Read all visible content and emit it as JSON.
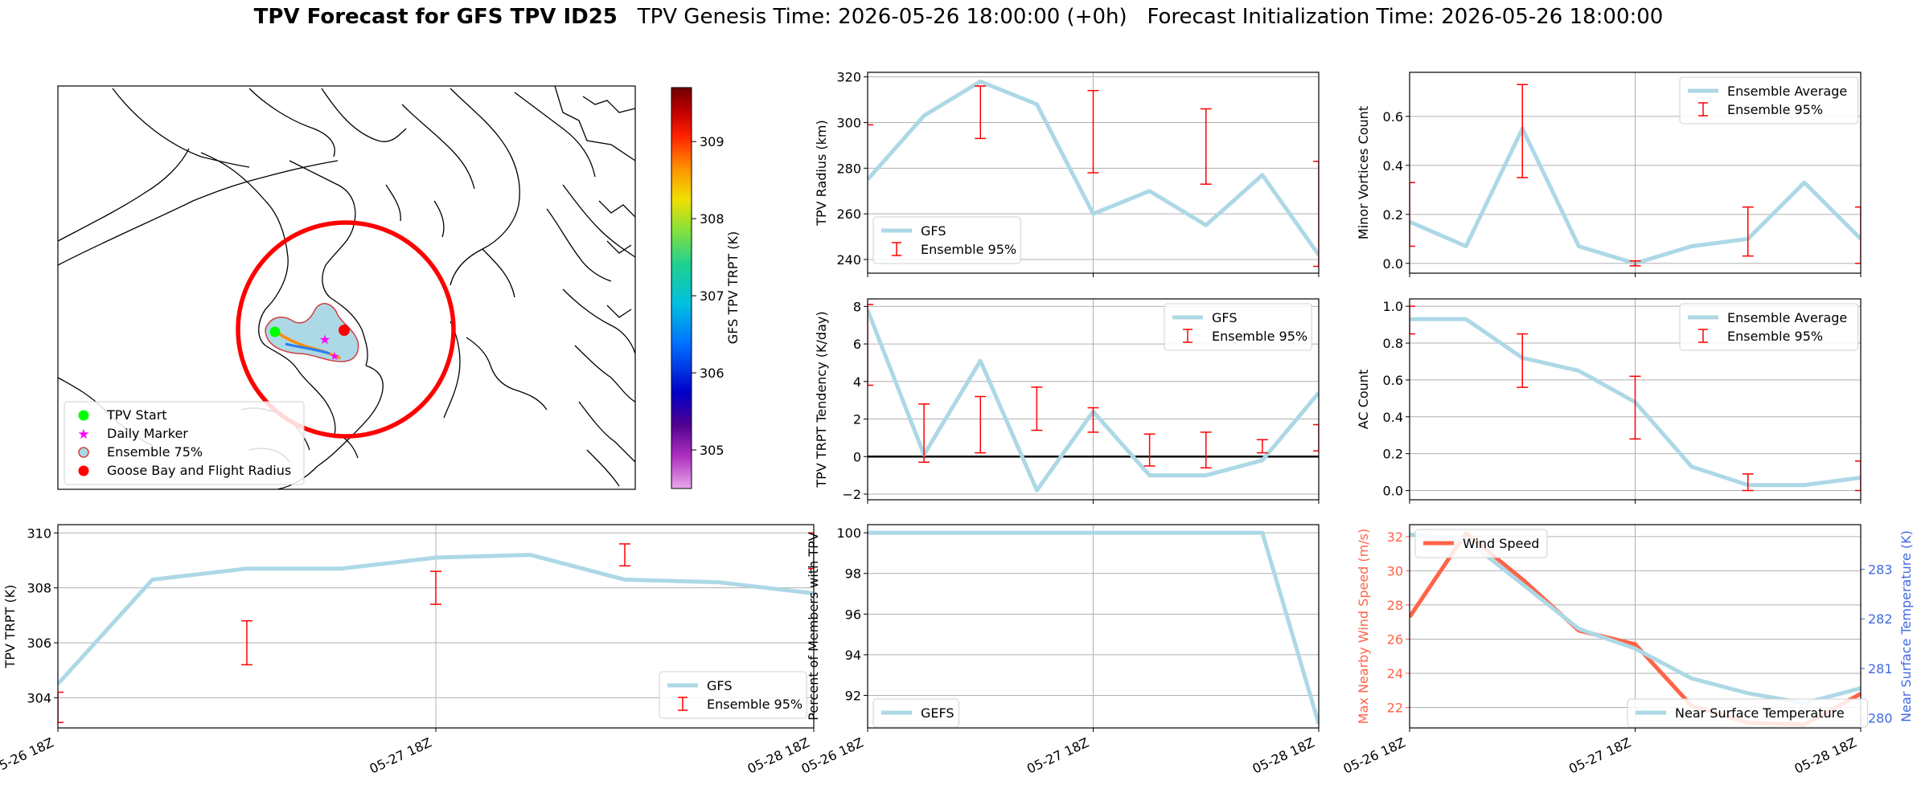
{
  "title": {
    "main": "TPV Forecast for GFS TPV ID25",
    "genesis": "TPV Genesis Time: 2026-05-26 18:00:00 (+0h)",
    "init": "Forecast Initialization Time: 2026-05-26 18:00:00"
  },
  "colors": {
    "light_blue": "#add8e6",
    "red": "#ff0000",
    "tomato": "#ff6347",
    "royal_blue": "#4169e1",
    "black": "#000000",
    "grid": "#b0b0b0"
  },
  "chart_data": [
    {
      "id": "map",
      "type": "map",
      "colorbar": {
        "label": "GFS TPV TRPT (K)",
        "ticks": [
          305,
          306,
          307,
          308,
          309
        ],
        "range": [
          304.5,
          309.7
        ]
      },
      "legend": {
        "placement": "lower-left",
        "entries": [
          "TPV Start",
          "Daily Marker",
          "Ensemble 75%",
          "Goose Bay and Flight Radius"
        ]
      }
    },
    {
      "id": "radius",
      "type": "line",
      "ylabel": "TPV Radius (km)",
      "ylim": [
        234,
        322
      ],
      "yticks": [
        240,
        260,
        280,
        300,
        320
      ],
      "x": [
        0,
        6,
        12,
        18,
        24,
        30,
        36,
        42,
        48
      ],
      "series": [
        {
          "name": "GFS",
          "values": [
            275,
            303,
            318,
            308,
            260,
            270,
            255,
            277,
            242
          ]
        }
      ],
      "ensemble": {
        "name": "Ensemble 95%",
        "x": [
          0,
          12,
          24,
          36,
          48
        ],
        "low": [
          null,
          293,
          278,
          273,
          237
        ],
        "high": [
          299,
          316,
          314,
          306,
          283
        ]
      },
      "legend": {
        "placement": "lower-left",
        "entries": [
          "GFS",
          "Ensemble 95%"
        ]
      }
    },
    {
      "id": "minor",
      "type": "line",
      "ylabel": "Minor Vortices Count",
      "ylim": [
        -0.04,
        0.78
      ],
      "yticks": [
        0.0,
        0.2,
        0.4,
        0.6
      ],
      "yticklabels": [
        "0.0",
        "0.2",
        "0.4",
        "0.6"
      ],
      "x": [
        0,
        6,
        12,
        18,
        24,
        30,
        36,
        42,
        48
      ],
      "series": [
        {
          "name": "Ensemble Average",
          "values": [
            0.17,
            0.07,
            0.55,
            0.07,
            0.0,
            0.07,
            0.1,
            0.33,
            0.1
          ]
        }
      ],
      "ensemble": {
        "name": "Ensemble 95%",
        "x": [
          0,
          12,
          24,
          36,
          48
        ],
        "low": [
          0.07,
          0.35,
          -0.01,
          0.03,
          0.0
        ],
        "high": [
          0.33,
          0.73,
          0.01,
          0.23,
          0.23
        ]
      },
      "legend": {
        "placement": "top-right",
        "entries": [
          "Ensemble Average",
          "Ensemble 95%"
        ]
      }
    },
    {
      "id": "tendency",
      "type": "line",
      "ylabel": "TPV TRPT Tendency (K/day)",
      "ylim": [
        -2.3,
        8.4
      ],
      "yticks": [
        -2,
        0,
        2,
        4,
        6,
        8
      ],
      "x": [
        0,
        6,
        12,
        18,
        24,
        30,
        36,
        42,
        48
      ],
      "series": [
        {
          "name": "GFS",
          "values": [
            7.8,
            0.1,
            5.1,
            -1.8,
            2.4,
            -1.0,
            -1.0,
            -0.2,
            3.4
          ]
        }
      ],
      "zero_line": true,
      "ensemble": {
        "name": "Ensemble 95%",
        "x": [
          0,
          6,
          12,
          18,
          24,
          30,
          36,
          42,
          48
        ],
        "low": [
          3.8,
          -0.3,
          0.2,
          1.4,
          1.3,
          -0.5,
          -0.6,
          0.2,
          0.3
        ],
        "high": [
          8.1,
          2.8,
          3.2,
          3.7,
          2.6,
          1.2,
          1.3,
          0.9,
          1.7
        ]
      },
      "legend": {
        "placement": "top-right",
        "entries": [
          "GFS",
          "Ensemble 95%"
        ]
      }
    },
    {
      "id": "ac",
      "type": "line",
      "ylabel": "AC Count",
      "ylim": [
        -0.05,
        1.04
      ],
      "yticks": [
        0.0,
        0.2,
        0.4,
        0.6,
        0.8,
        1.0
      ],
      "yticklabels": [
        "0.0",
        "0.2",
        "0.4",
        "0.6",
        "0.8",
        "1.0"
      ],
      "x": [
        0,
        6,
        12,
        18,
        24,
        30,
        36,
        42,
        48
      ],
      "series": [
        {
          "name": "Ensemble Average",
          "values": [
            0.93,
            0.93,
            0.72,
            0.65,
            0.48,
            0.13,
            0.03,
            0.03,
            0.07
          ]
        }
      ],
      "ensemble": {
        "name": "Ensemble 95%",
        "x": [
          0,
          12,
          24,
          36,
          48
        ],
        "low": [
          0.85,
          0.56,
          0.28,
          0.0,
          0.0
        ],
        "high": [
          1.0,
          0.85,
          0.62,
          0.09,
          0.16
        ]
      },
      "legend": {
        "placement": "top-right",
        "entries": [
          "Ensemble Average",
          "Ensemble 95%"
        ]
      }
    },
    {
      "id": "trpt",
      "type": "line",
      "ylabel": "TPV TRPT (K)",
      "ylim": [
        302.9,
        310.3
      ],
      "yticks": [
        304,
        306,
        308,
        310
      ],
      "xticklabels": [
        "05-26 18Z",
        "05-27 18Z",
        "05-28 18Z"
      ],
      "x": [
        0,
        6,
        12,
        18,
        24,
        30,
        36,
        42,
        48
      ],
      "series": [
        {
          "name": "GFS",
          "values": [
            304.5,
            308.3,
            308.7,
            308.7,
            309.1,
            309.2,
            308.3,
            308.2,
            307.8
          ]
        }
      ],
      "ensemble": {
        "name": "Ensemble 95%",
        "x": [
          0,
          12,
          24,
          36,
          48
        ],
        "low": [
          303.1,
          305.2,
          307.4,
          308.8,
          308.7
        ],
        "high": [
          304.2,
          306.8,
          308.6,
          309.6,
          310.0
        ]
      },
      "legend": {
        "placement": "lower-right",
        "entries": [
          "GFS",
          "Ensemble 95%"
        ]
      }
    },
    {
      "id": "percent",
      "type": "line",
      "ylabel": "Percent of Members with TPV",
      "ylim": [
        90.4,
        100.4
      ],
      "yticks": [
        92,
        94,
        96,
        98,
        100
      ],
      "xticklabels": [
        "05-26 18Z",
        "05-27 18Z",
        "05-28 18Z"
      ],
      "x": [
        0,
        6,
        12,
        18,
        24,
        30,
        36,
        42,
        48
      ],
      "series": [
        {
          "name": "GEFS",
          "values": [
            100,
            100,
            100,
            100,
            100,
            100,
            100,
            100,
            90.6
          ]
        }
      ],
      "legend": {
        "placement": "lower-left",
        "entries": [
          "GEFS"
        ]
      }
    },
    {
      "id": "wind_temp",
      "type": "line",
      "ylabel": "Max Nearby Wind Speed (m/s)",
      "ylabel_right": "Near Surface Temperature (K)",
      "ylim": [
        20.8,
        32.7
      ],
      "yticks": [
        22,
        24,
        26,
        28,
        30,
        32
      ],
      "ylim_right": [
        279.8,
        283.9
      ],
      "yticks_right": [
        280,
        281,
        282,
        283
      ],
      "xticklabels": [
        "05-26 18Z",
        "05-27 18Z",
        "05-28 18Z"
      ],
      "x": [
        0,
        6,
        12,
        18,
        24,
        30,
        36,
        42,
        48
      ],
      "series": [
        {
          "name": "Wind Speed",
          "axis": "left",
          "values": [
            27.3,
            32.2,
            29.5,
            26.5,
            25.7,
            22.1,
            21.1,
            21.0,
            22.8
          ]
        },
        {
          "name": "Near Surface Temperature",
          "axis": "right",
          "values": [
            283.7,
            283.6,
            282.7,
            281.8,
            281.4,
            280.8,
            280.5,
            280.3,
            280.6
          ]
        }
      ],
      "legend": {
        "placement": "top-left / lower-right",
        "entries": [
          "Wind Speed",
          "Near Surface Temperature"
        ]
      }
    }
  ]
}
